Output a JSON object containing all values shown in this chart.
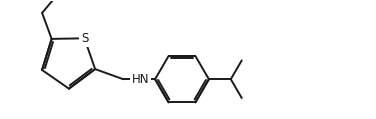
{
  "background_color": "#ffffff",
  "line_color": "#1a1a1a",
  "line_width": 1.4,
  "s_label": "S",
  "hn_label": "HN",
  "s_fontsize": 8.5,
  "hn_fontsize": 8.5
}
